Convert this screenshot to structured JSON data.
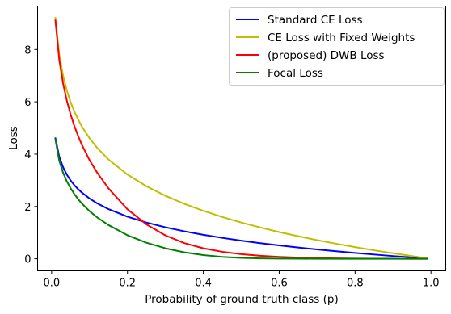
{
  "chart_data": {
    "type": "line",
    "title": "",
    "xlabel": "Probability of ground truth class (p)",
    "ylabel": "Loss",
    "xlim": [
      -0.037,
      1.039
    ],
    "ylim": [
      -0.46,
      9.66
    ],
    "xticks": [
      {
        "value": 0.0,
        "label": "0.0"
      },
      {
        "value": 0.2,
        "label": "0.2"
      },
      {
        "value": 0.4,
        "label": "0.4"
      },
      {
        "value": 0.6,
        "label": "0.6"
      },
      {
        "value": 0.8,
        "label": "0.8"
      },
      {
        "value": 1.0,
        "label": "1.0"
      }
    ],
    "yticks": [
      {
        "value": 0,
        "label": "0"
      },
      {
        "value": 2,
        "label": "2"
      },
      {
        "value": 4,
        "label": "4"
      },
      {
        "value": 6,
        "label": "6"
      },
      {
        "value": 8,
        "label": "8"
      }
    ],
    "grid": false,
    "legend_position": "top-right",
    "x": [
      0.01,
      0.02,
      0.03,
      0.04,
      0.05,
      0.06,
      0.07,
      0.08,
      0.1,
      0.12,
      0.15,
      0.2,
      0.25,
      0.3,
      0.35,
      0.4,
      0.45,
      0.5,
      0.55,
      0.6,
      0.65,
      0.7,
      0.75,
      0.8,
      0.85,
      0.9,
      0.95,
      0.99
    ],
    "series": [
      {
        "name": "Standard CE Loss",
        "color": "#0000ff",
        "values": [
          4.605,
          3.912,
          3.507,
          3.219,
          2.996,
          2.813,
          2.659,
          2.526,
          2.303,
          2.12,
          1.897,
          1.609,
          1.386,
          1.204,
          1.05,
          0.916,
          0.799,
          0.693,
          0.598,
          0.511,
          0.431,
          0.357,
          0.288,
          0.223,
          0.163,
          0.105,
          0.051,
          0.01
        ]
      },
      {
        "name": "CE Loss with Fixed Weights",
        "color": "#bfbf00",
        "values": [
          9.21,
          7.824,
          7.013,
          6.438,
          5.991,
          5.627,
          5.319,
          5.051,
          4.605,
          4.241,
          3.794,
          3.219,
          2.773,
          2.408,
          2.1,
          1.833,
          1.597,
          1.386,
          1.196,
          1.022,
          0.862,
          0.713,
          0.575,
          0.446,
          0.325,
          0.211,
          0.103,
          0.02
        ]
      },
      {
        "name": "(proposed) DWB Loss",
        "color": "#ff0000",
        "values": [
          9.11,
          7.626,
          6.72,
          6.053,
          5.521,
          5.074,
          4.69,
          4.35,
          3.77,
          3.294,
          2.69,
          1.891,
          1.315,
          0.894,
          0.598,
          0.4,
          0.267,
          0.176,
          0.114,
          0.073,
          0.045,
          0.027,
          0.015,
          0.008,
          0.004,
          0.001,
          0.0,
          0.0
        ]
      },
      {
        "name": "Focal Loss",
        "color": "#008000",
        "values": [
          4.559,
          3.757,
          3.298,
          2.963,
          2.696,
          2.472,
          2.279,
          2.109,
          1.821,
          1.583,
          1.289,
          0.901,
          0.613,
          0.401,
          0.247,
          0.141,
          0.074,
          0.035,
          0.015,
          0.005,
          0.002,
          0.0,
          0.0,
          0.0,
          0.0,
          0.0,
          0.0,
          0.0
        ]
      }
    ]
  }
}
